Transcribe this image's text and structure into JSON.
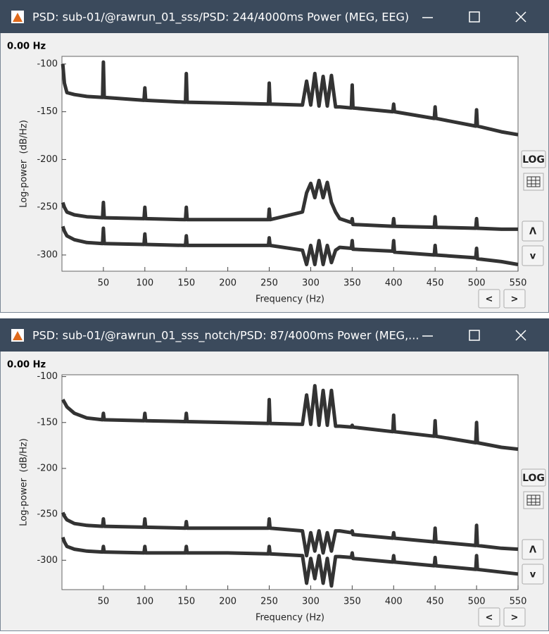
{
  "windows": [
    {
      "title": "PSD: sub-01/@rawrun_01_sss/PSD: 244/4000ms Power (MEG, EEG)",
      "cursor_label": "0.00 Hz",
      "buttons": {
        "log": "LOG",
        "up": "Λ",
        "down": "v",
        "left": "<",
        "right": ">"
      }
    },
    {
      "title": "PSD: sub-01/@rawrun_01_sss_notch/PSD: 87/4000ms Power (MEG,...",
      "cursor_label": "0.00 Hz",
      "buttons": {
        "log": "LOG",
        "up": "Λ",
        "down": "v",
        "left": "<",
        "right": ">"
      }
    }
  ],
  "chart_data": [
    {
      "type": "line",
      "xlabel": "Frequency (Hz)",
      "ylabel": "Log-power  (dB/Hz)",
      "x": [
        1,
        3,
        6,
        15,
        30,
        49,
        50,
        51,
        99,
        100,
        101,
        149,
        150,
        151,
        200,
        249,
        250,
        251,
        290,
        295,
        300,
        305,
        310,
        315,
        320,
        325,
        330,
        335,
        349,
        350,
        351,
        399,
        400,
        401,
        449,
        450,
        451,
        499,
        500,
        501,
        530,
        550
      ],
      "series": [
        {
          "color": "#333333",
          "values": [
            -100,
            -120,
            -130,
            -132,
            -134,
            -135,
            -98,
            -135,
            -138,
            -125,
            -138,
            -140,
            -110,
            -140,
            -141,
            -142,
            -120,
            -142,
            -143,
            -118,
            -143,
            -110,
            -144,
            -113,
            -144,
            -112,
            -145,
            -145,
            -146,
            -122,
            -146,
            -150,
            -142,
            -150,
            -157,
            -145,
            -157,
            -165,
            -148,
            -165,
            -171,
            -174
          ]
        },
        {
          "color": "#333333",
          "values": [
            -245,
            -250,
            -255,
            -258,
            -260,
            -261,
            -245,
            -261,
            -262,
            -250,
            -262,
            -263,
            -250,
            -263,
            -263,
            -263,
            -252,
            -263,
            -255,
            -235,
            -225,
            -240,
            -222,
            -240,
            -224,
            -245,
            -255,
            -262,
            -266,
            -262,
            -268,
            -270,
            -262,
            -270,
            -271,
            -260,
            -271,
            -272,
            -262,
            -272,
            -273,
            -273
          ]
        },
        {
          "color": "#333333",
          "values": [
            -270,
            -275,
            -280,
            -284,
            -287,
            -288,
            -272,
            -288,
            -289,
            -278,
            -289,
            -290,
            -280,
            -290,
            -290,
            -290,
            -282,
            -290,
            -295,
            -310,
            -290,
            -310,
            -285,
            -310,
            -290,
            -308,
            -295,
            -292,
            -293,
            -285,
            -294,
            -296,
            -285,
            -297,
            -300,
            -290,
            -300,
            -303,
            -293,
            -304,
            -307,
            -310
          ]
        }
      ],
      "xlim": [
        0,
        550
      ],
      "ylim": [
        -317,
        -92
      ],
      "xticks": [
        50,
        100,
        150,
        200,
        250,
        300,
        350,
        400,
        450,
        500,
        550
      ],
      "yticks": [
        -100,
        -150,
        -200,
        -250,
        -300
      ]
    },
    {
      "type": "line",
      "xlabel": "Frequency (Hz)",
      "ylabel": "Log-power  (dB/Hz)",
      "x": [
        1,
        3,
        6,
        15,
        30,
        49,
        50,
        51,
        99,
        100,
        101,
        149,
        150,
        151,
        200,
        249,
        250,
        251,
        290,
        295,
        300,
        305,
        310,
        315,
        320,
        325,
        330,
        335,
        349,
        350,
        351,
        399,
        400,
        401,
        449,
        450,
        451,
        499,
        500,
        501,
        530,
        550
      ],
      "series": [
        {
          "color": "#333333",
          "values": [
            -125,
            -128,
            -133,
            -140,
            -145,
            -147,
            -140,
            -147,
            -148,
            -140,
            -148,
            -149,
            -140,
            -149,
            -150,
            -151,
            -125,
            -151,
            -152,
            -120,
            -152,
            -110,
            -153,
            -115,
            -153,
            -115,
            -154,
            -154,
            -155,
            -153,
            -155,
            -160,
            -142,
            -160,
            -165,
            -148,
            -165,
            -172,
            -150,
            -172,
            -177,
            -179
          ]
        },
        {
          "color": "#333333",
          "values": [
            -248,
            -252,
            -256,
            -260,
            -262,
            -263,
            -255,
            -263,
            -264,
            -255,
            -264,
            -265,
            -258,
            -265,
            -265,
            -265,
            -255,
            -265,
            -268,
            -295,
            -270,
            -290,
            -268,
            -292,
            -270,
            -290,
            -268,
            -268,
            -270,
            -268,
            -272,
            -276,
            -270,
            -276,
            -280,
            -265,
            -280,
            -284,
            -262,
            -284,
            -287,
            -288
          ]
        },
        {
          "color": "#333333",
          "values": [
            -275,
            -280,
            -285,
            -288,
            -290,
            -291,
            -285,
            -291,
            -292,
            -285,
            -292,
            -292,
            -285,
            -292,
            -292,
            -293,
            -285,
            -293,
            -295,
            -325,
            -298,
            -320,
            -295,
            -325,
            -298,
            -328,
            -296,
            -296,
            -297,
            -292,
            -298,
            -302,
            -295,
            -302,
            -306,
            -297,
            -306,
            -310,
            -295,
            -310,
            -313,
            -315
          ]
        }
      ],
      "xlim": [
        0,
        550
      ],
      "ylim": [
        -332,
        -98
      ],
      "xticks": [
        50,
        100,
        150,
        200,
        250,
        300,
        350,
        400,
        450,
        500,
        550
      ],
      "yticks": [
        -100,
        -150,
        -200,
        -250,
        -300
      ]
    }
  ]
}
